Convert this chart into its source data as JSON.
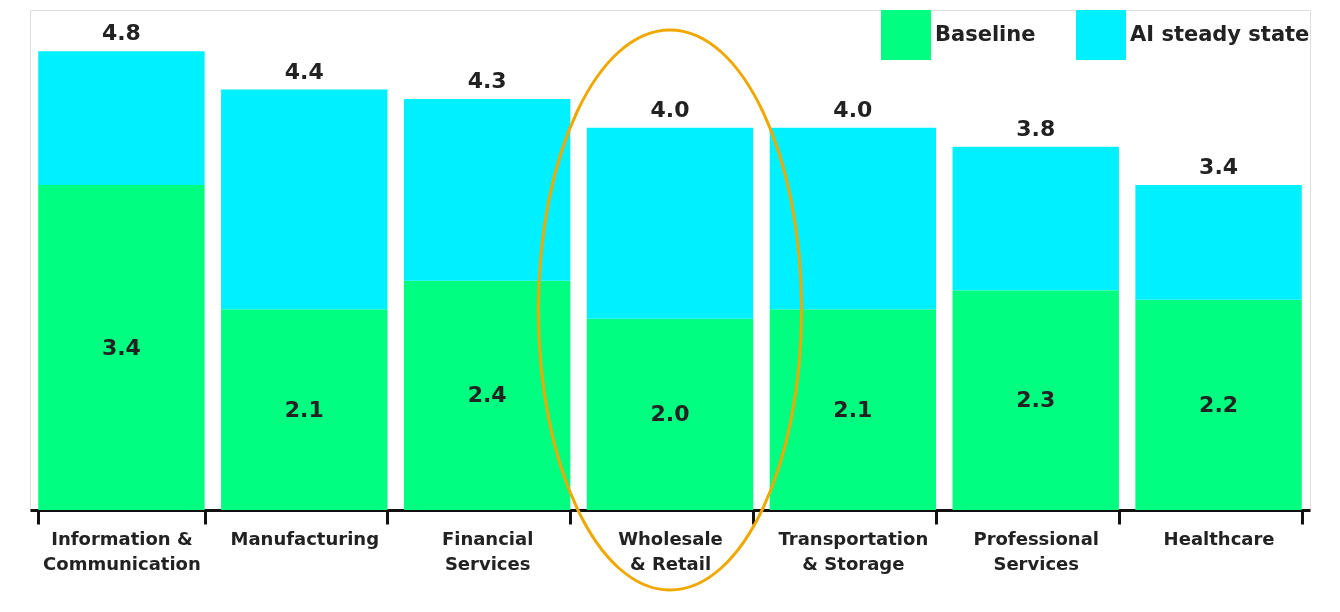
{
  "chart_data": {
    "type": "bar",
    "stacked": true,
    "categories": [
      "Information & Communication",
      "Manufacturing",
      "Financial Services",
      "Wholesale & Retail",
      "Transportation & Storage",
      "Professional Services",
      "Healthcare"
    ],
    "series": [
      {
        "name": "Baseline",
        "color": "#00ff80",
        "values": [
          3.4,
          2.1,
          2.4,
          2.0,
          2.1,
          2.3,
          2.2
        ],
        "value_labels": [
          "3.4",
          "2.1",
          "2.4",
          "2.0",
          "2.1",
          "2.3",
          "2.2"
        ]
      },
      {
        "name": "AI steady state",
        "color": "#00f0ff",
        "values": [
          1.4,
          2.3,
          1.9,
          2.0,
          1.9,
          1.5,
          1.2
        ]
      }
    ],
    "totals": [
      "4.8",
      "4.4",
      "4.3",
      "4.0",
      "4.0",
      "3.8",
      "3.4"
    ],
    "legend": "top right",
    "grid": false
  }
}
